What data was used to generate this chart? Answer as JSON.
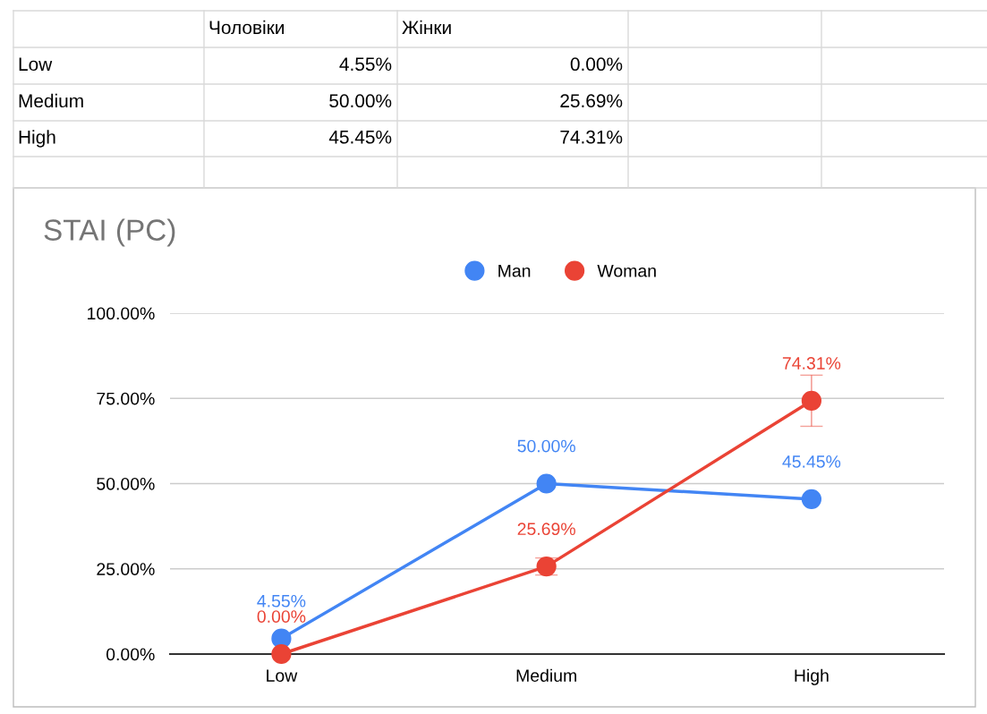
{
  "chart_data": {
    "type": "line",
    "title": "STAI (PC)",
    "categories": [
      "Low",
      "Medium",
      "High"
    ],
    "series": [
      {
        "name": "Man",
        "color": "#4285f4",
        "values": [
          4.55,
          50.0,
          45.45
        ],
        "value_labels": [
          "4.55%",
          "50.00%",
          "45.45%"
        ]
      },
      {
        "name": "Woman",
        "color": "#ea4335",
        "values": [
          0.0,
          25.69,
          74.31
        ],
        "errors": [
          null,
          2.5,
          7.5
        ],
        "value_labels": [
          "0.00%",
          "25.69%",
          "74.31%"
        ]
      }
    ],
    "ylim": [
      0,
      100
    ],
    "yticks": [
      {
        "value": 0,
        "label": "0.00%"
      },
      {
        "value": 25,
        "label": "25.00%"
      },
      {
        "value": 50,
        "label": "50.00%"
      },
      {
        "value": 75,
        "label": "75.00%"
      },
      {
        "value": 100,
        "label": "100.00%"
      }
    ],
    "grid": "y",
    "legend": "top",
    "marker": "circle",
    "line_style": "solid",
    "annotations": [
      "Чоловіки",
      "Жінки",
      "Low",
      "4.55%",
      "0.00%",
      "Medium",
      "50.00%",
      "25.69%",
      "High",
      "45.45%",
      "74.31%"
    ]
  }
}
